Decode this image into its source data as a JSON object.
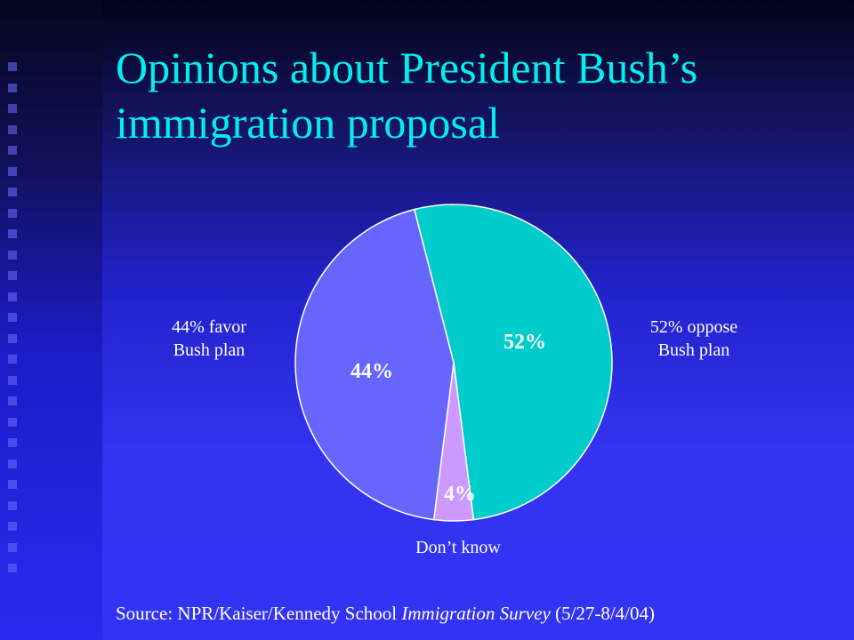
{
  "slide": {
    "title": "Opinions about President Bush’s immigration proposal",
    "labels": {
      "favor": [
        "44% favor",
        "Bush plan"
      ],
      "oppose": [
        "52% oppose",
        "Bush plan"
      ],
      "dont_know": "Don’t know"
    },
    "source": {
      "prefix": "Source: NPR/Kaiser/Kennedy School ",
      "italic": "Immigration Survey",
      "suffix": " (5/27-8/4/04)"
    }
  },
  "colors": {
    "oppose": "#00cccc",
    "favor": "#6666ff",
    "dont_know": "#cc99ff",
    "title": "#00f0f0"
  },
  "chart_data": {
    "type": "pie",
    "slices": [
      {
        "label": "52%",
        "value": 52,
        "color": "#00cccc"
      },
      {
        "label": "4%",
        "value": 4,
        "color": "#cc99ff"
      },
      {
        "label": "44%",
        "value": 44,
        "color": "#6666ff"
      }
    ]
  }
}
